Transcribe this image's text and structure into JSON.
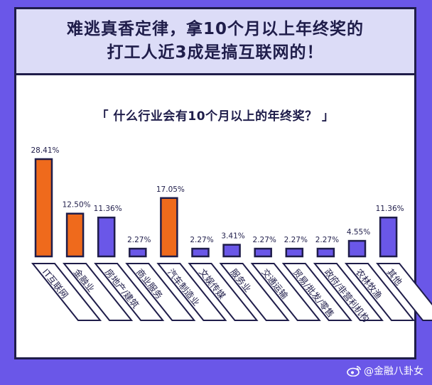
{
  "headline": {
    "line1": "难逃真香定律，拿10个月以上年终奖的",
    "line2": "打工人近3成是搞互联网的！"
  },
  "colors": {
    "background": "#6a57e8",
    "highlight": "#ef6a1c",
    "regular": "#6a57e8",
    "outline": "#1f1d4a",
    "header_bg": "#dcdcf7"
  },
  "watermark": {
    "text": "@金融八卦女",
    "icon": "weibo-icon"
  },
  "chart_data": {
    "type": "bar",
    "title": "「 什么行业会有10个月以上的年终奖？ 」",
    "categories": [
      "IT互联网",
      "金融业",
      "房地产/建筑",
      "商业服务",
      "汽车制造业",
      "文娱传媒",
      "服务业",
      "交通运输",
      "贸易/批发/零售",
      "政府/非营利机构",
      "农林牧渔",
      "其他"
    ],
    "values": [
      28.41,
      12.5,
      11.36,
      2.27,
      17.05,
      2.27,
      3.41,
      2.27,
      2.27,
      2.27,
      4.55,
      11.36
    ],
    "value_labels": [
      "28.41%",
      "12.50%",
      "11.36%",
      "2.27%",
      "17.05%",
      "2.27%",
      "3.41%",
      "2.27%",
      "2.27%",
      "2.27%",
      "4.55%",
      "11.36%"
    ],
    "highlight": [
      true,
      true,
      false,
      false,
      true,
      false,
      false,
      false,
      false,
      false,
      false,
      false
    ],
    "ylim": [
      0,
      28.41
    ],
    "grid": false,
    "legend": "none"
  }
}
